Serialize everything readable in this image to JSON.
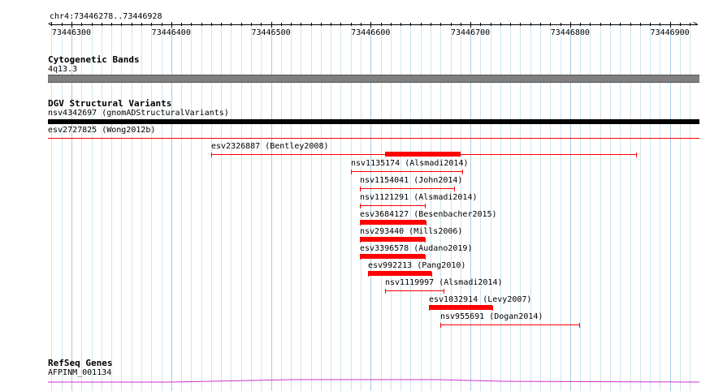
{
  "ruler": {
    "region_label": "chr4:73446278..73446928",
    "start": 73446278,
    "end": 73446928,
    "ticks": [
      "73446300",
      "73446400",
      "73446500",
      "73446600",
      "73446700",
      "73446800",
      "73446900"
    ]
  },
  "tracks": {
    "cytoband": {
      "title": "Cytogenetic Bands",
      "band_label": "4q13.3",
      "color": "#808080"
    },
    "dgv": {
      "title": "DGV Structural Variants",
      "full_width": [
        {
          "label": "nsv4342697 (gnomADStructuralVariants)",
          "color": "#000000"
        },
        {
          "label": "esv2727825 (Wong2012b)",
          "color": "#ff0000"
        }
      ],
      "variants": [
        {
          "label": "esv2326887 (Bentley2008)",
          "start": 73446440,
          "end": 73446866,
          "thick_start": 73446614,
          "thick_end": 73446690
        },
        {
          "label": "nsv1135174 (Alsmadi2014)",
          "start": 73446580,
          "end": 73446692,
          "thick_start": null,
          "thick_end": null
        },
        {
          "label": "nsv1154041 (John2014)",
          "start": 73446589,
          "end": 73446684,
          "thick_start": null,
          "thick_end": null
        },
        {
          "label": "nsv1121291 (Alsmadi2014)",
          "start": 73446589,
          "end": 73446654,
          "thick_start": null,
          "thick_end": null
        },
        {
          "label": "esv3684127 (Besenbacher2015)",
          "start": 73446589,
          "end": 73446655,
          "thick_start": 73446589,
          "thick_end": 73446655
        },
        {
          "label": "nsv293440 (Mills2006)",
          "start": 73446589,
          "end": 73446654,
          "thick_start": 73446589,
          "thick_end": 73446654
        },
        {
          "label": "esv3396578 (Audano2019)",
          "start": 73446589,
          "end": 73446654,
          "thick_start": 73446589,
          "thick_end": 73446654
        },
        {
          "label": "esv992213 (Pang2010)",
          "start": 73446597,
          "end": 73446661,
          "thick_start": 73446597,
          "thick_end": 73446661
        },
        {
          "label": "nsv1119997 (Alsmadi2014)",
          "start": 73446614,
          "end": 73446673,
          "thick_start": null,
          "thick_end": null
        },
        {
          "label": "esv1032914 (Levy2007)",
          "start": 73446658,
          "end": 73446722,
          "thick_start": 73446658,
          "thick_end": 73446722
        },
        {
          "label": "nsv955691 (Dogan2014)",
          "start": 73446670,
          "end": 73446809,
          "thick_start": null,
          "thick_end": null
        }
      ]
    },
    "refseq": {
      "title": "RefSeq Genes",
      "gene_label": "AFPINM_001134",
      "color": "#cc33cc"
    }
  }
}
